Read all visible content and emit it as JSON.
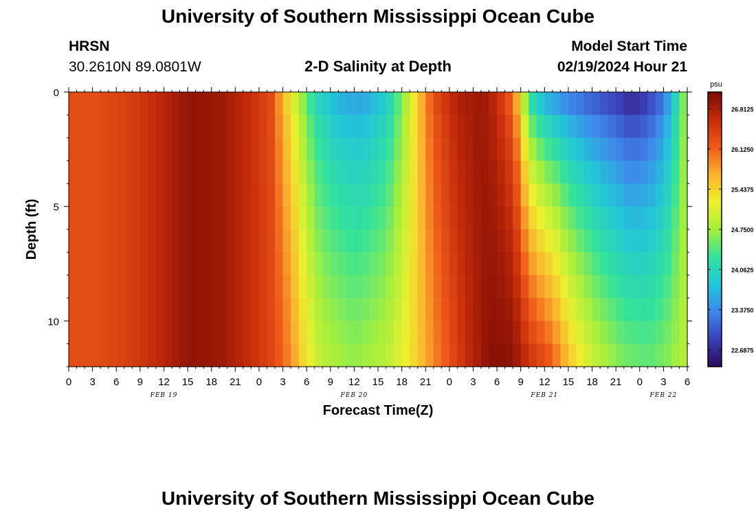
{
  "header": {
    "title": "University of Southern Mississippi Ocean Cube",
    "station": "HRSN",
    "coords": "30.2610N  89.0801W",
    "plot_title": "2-D Salinity at Depth",
    "model_label": "Model Start Time",
    "model_time": "02/19/2024 Hour 21"
  },
  "footer": {
    "title": "University of Southern Mississippi Ocean Cube"
  },
  "chart_data": {
    "type": "heatmap",
    "title": "2-D Salinity at Depth",
    "xlabel": "Forecast Time(Z)",
    "ylabel": "Depth (ft)",
    "x_start_hour": 0,
    "x_end_hour": 78,
    "x_tick_labels": [
      "0",
      "3",
      "6",
      "9",
      "12",
      "15",
      "18",
      "21",
      "0",
      "3",
      "6",
      "9",
      "12",
      "15",
      "18",
      "21",
      "0",
      "3",
      "6",
      "9",
      "12",
      "15",
      "18",
      "21",
      "0",
      "3",
      "6"
    ],
    "day_labels": [
      {
        "text": "FEB 19",
        "hour": 12
      },
      {
        "text": "FEB 20",
        "hour": 36
      },
      {
        "text": "FEB 21",
        "hour": 60
      },
      {
        "text": "FEB 22",
        "hour": 75
      }
    ],
    "y_ticks": [
      0,
      5,
      10
    ],
    "ylim": [
      0,
      12
    ],
    "colorbar": {
      "unit": "psu",
      "min": 22.4,
      "max": 27.1,
      "labels": [
        "26.8125",
        "26.1250",
        "25.4375",
        "24.7500",
        "24.0625",
        "23.3750",
        "22.6875"
      ],
      "stops": [
        "#2b0a5a",
        "#3a3fb8",
        "#3f86ec",
        "#22c7d8",
        "#35e29a",
        "#a5ef3d",
        "#eef02e",
        "#fbb12e",
        "#ef5a1a",
        "#c42b0a",
        "#7a0a04"
      ]
    },
    "surface_profile": [
      {
        "hour": 0,
        "value": 26.3
      },
      {
        "hour": 4,
        "value": 26.3
      },
      {
        "hour": 8,
        "value": 26.45
      },
      {
        "hour": 12,
        "value": 26.7
      },
      {
        "hour": 15,
        "value": 26.95
      },
      {
        "hour": 19,
        "value": 26.9
      },
      {
        "hour": 23,
        "value": 26.6
      },
      {
        "hour": 25.5,
        "value": 26.3
      },
      {
        "hour": 27,
        "value": 25.6
      },
      {
        "hour": 29,
        "value": 24.8
      },
      {
        "hour": 31,
        "value": 24.0
      },
      {
        "hour": 34,
        "value": 23.55
      },
      {
        "hour": 37,
        "value": 23.45
      },
      {
        "hour": 40,
        "value": 23.8
      },
      {
        "hour": 42,
        "value": 24.5
      },
      {
        "hour": 44,
        "value": 25.5
      },
      {
        "hour": 46,
        "value": 26.3
      },
      {
        "hour": 49,
        "value": 26.8
      },
      {
        "hour": 52,
        "value": 26.9
      },
      {
        "hour": 54,
        "value": 26.6
      },
      {
        "hour": 56,
        "value": 26.0
      },
      {
        "hour": 57,
        "value": 25.2
      },
      {
        "hour": 58,
        "value": 24.0
      },
      {
        "hour": 60,
        "value": 23.4
      },
      {
        "hour": 63,
        "value": 23.1
      },
      {
        "hour": 66,
        "value": 22.9
      },
      {
        "hour": 69,
        "value": 22.7
      },
      {
        "hour": 71,
        "value": 22.5
      },
      {
        "hour": 73,
        "value": 22.7
      },
      {
        "hour": 75,
        "value": 23.1
      },
      {
        "hour": 77,
        "value": 24.2
      },
      {
        "hour": 78,
        "value": 24.9
      }
    ],
    "bottom_profile": [
      {
        "hour": 0,
        "value": 26.3
      },
      {
        "hour": 4,
        "value": 26.3
      },
      {
        "hour": 8,
        "value": 26.45
      },
      {
        "hour": 12,
        "value": 26.7
      },
      {
        "hour": 15,
        "value": 26.95
      },
      {
        "hour": 19,
        "value": 26.9
      },
      {
        "hour": 23,
        "value": 26.6
      },
      {
        "hour": 26,
        "value": 26.3
      },
      {
        "hour": 28,
        "value": 25.9
      },
      {
        "hour": 30,
        "value": 25.3
      },
      {
        "hour": 32,
        "value": 24.9
      },
      {
        "hour": 36,
        "value": 24.7
      },
      {
        "hour": 40,
        "value": 24.9
      },
      {
        "hour": 43,
        "value": 25.3
      },
      {
        "hour": 46,
        "value": 25.9
      },
      {
        "hour": 50,
        "value": 26.6
      },
      {
        "hour": 53,
        "value": 27.0
      },
      {
        "hour": 56,
        "value": 27.0
      },
      {
        "hour": 58,
        "value": 26.6
      },
      {
        "hour": 61,
        "value": 26.2
      },
      {
        "hour": 63,
        "value": 25.6
      },
      {
        "hour": 65,
        "value": 25.2
      },
      {
        "hour": 67,
        "value": 24.9
      },
      {
        "hour": 70,
        "value": 24.6
      },
      {
        "hour": 73,
        "value": 24.5
      },
      {
        "hour": 75,
        "value": 24.6
      },
      {
        "hour": 77,
        "value": 24.8
      },
      {
        "hour": 78,
        "value": 24.9
      }
    ]
  }
}
